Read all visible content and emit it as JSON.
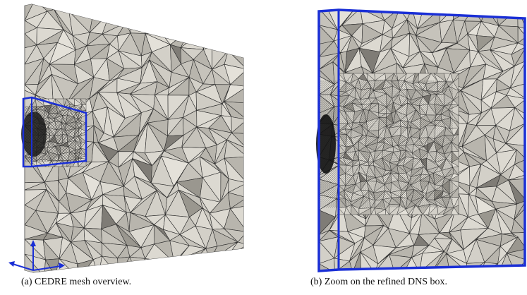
{
  "figure": {
    "panels": [
      {
        "id": "a",
        "caption": "(a) CEDRE mesh overview."
      },
      {
        "id": "b",
        "caption": "(b) Zoom on the refined DNS box."
      }
    ],
    "colors": {
      "mesh_face": "#c8c5bd",
      "mesh_edge": "#2a2a2a",
      "highlight_box": "#1a2fd6",
      "axes_arrows": "#1a2fd6"
    },
    "icons": [
      "axes-arrows-icon"
    ]
  }
}
